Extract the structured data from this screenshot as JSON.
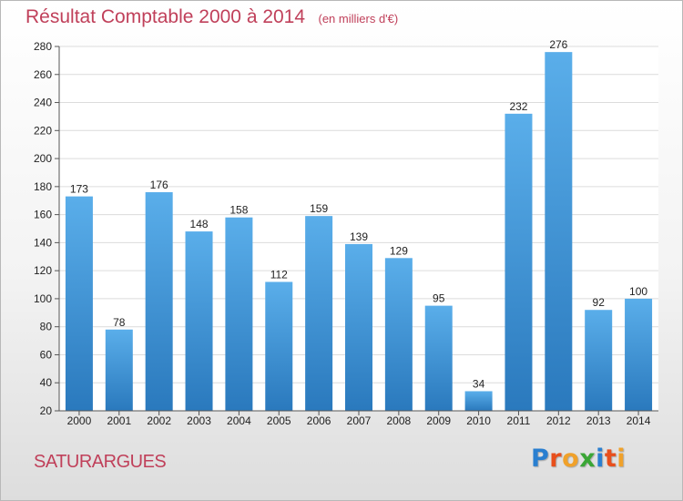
{
  "header": {
    "title": "Résultat Comptable 2000 à 2014",
    "subtitle": "(en milliers d'€)"
  },
  "footer": {
    "place_name": "SATURARGUES",
    "brand": "Proxiti",
    "brand_letter_colors": [
      "#2a7fd0",
      "#e84f1c",
      "#f0a12a",
      "#3aa635",
      "#2a7fd0",
      "#e84f1c",
      "#f0a12a"
    ]
  },
  "colors": {
    "title": "#c0405a",
    "bar_top": "#5aaeea",
    "bar_bottom": "#2a79bd",
    "grid": "#dcdcdc",
    "axis_text": "#222222"
  },
  "chart_data": {
    "type": "bar",
    "title": "Résultat Comptable 2000 à 2014",
    "subtitle": "(en milliers d'€)",
    "categories": [
      "2000",
      "2001",
      "2002",
      "2003",
      "2004",
      "2005",
      "2006",
      "2007",
      "2008",
      "2009",
      "2010",
      "2011",
      "2012",
      "2013",
      "2014"
    ],
    "values": [
      173,
      78,
      176,
      148,
      158,
      112,
      159,
      139,
      129,
      95,
      34,
      232,
      276,
      92,
      100
    ],
    "ylim": [
      20,
      280
    ],
    "yticks": [
      20,
      40,
      60,
      80,
      100,
      120,
      140,
      160,
      180,
      200,
      220,
      240,
      260,
      280
    ],
    "grid": true,
    "legend": "none",
    "data_labels": true
  }
}
